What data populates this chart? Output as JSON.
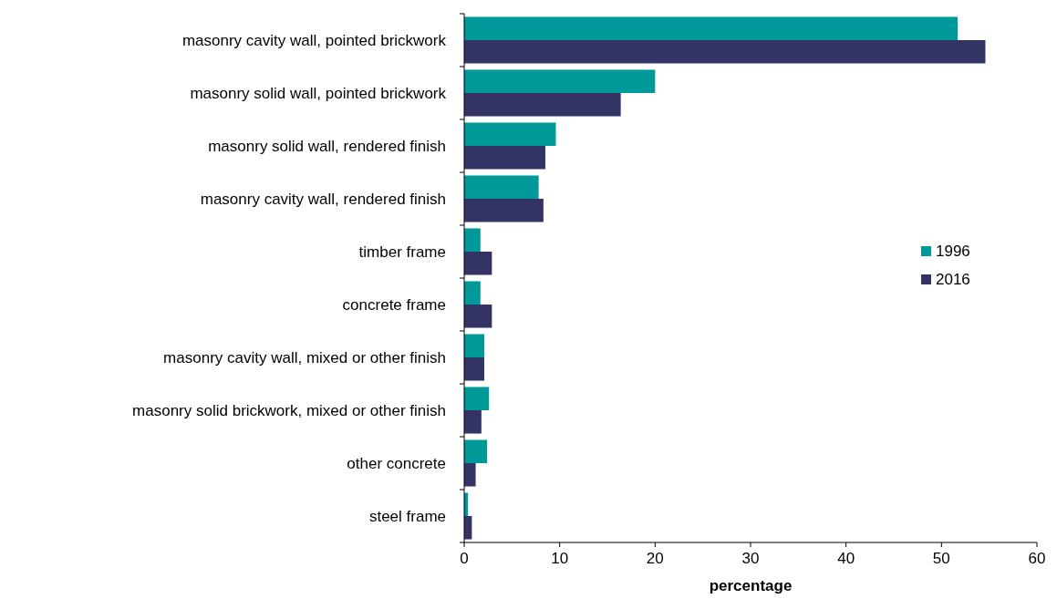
{
  "chart_data": {
    "type": "bar",
    "orientation": "horizontal",
    "xlabel": "percentage",
    "categories": [
      "masonry cavity wall, pointed brickwork",
      "masonry solid wall, pointed brickwork",
      "masonry solid wall, rendered finish",
      "masonry cavity wall, rendered finish",
      "timber frame",
      "concrete frame",
      "masonry cavity wall, mixed or other finish",
      "masonry solid brickwork, mixed or other finish",
      "other concrete",
      "steel frame"
    ],
    "series": [
      {
        "name": "1996",
        "color": "#009999",
        "values": [
          51.7,
          20.0,
          9.6,
          7.8,
          1.7,
          1.7,
          2.1,
          2.6,
          2.4,
          0.4
        ]
      },
      {
        "name": "2016",
        "color": "#333366",
        "values": [
          54.6,
          16.4,
          8.5,
          8.3,
          2.9,
          2.9,
          2.1,
          1.8,
          1.2,
          0.8
        ]
      }
    ],
    "xlim": [
      0,
      60
    ],
    "xticks": [
      0,
      10,
      20,
      30,
      40,
      50,
      60
    ],
    "grid": false,
    "legend": "right"
  }
}
